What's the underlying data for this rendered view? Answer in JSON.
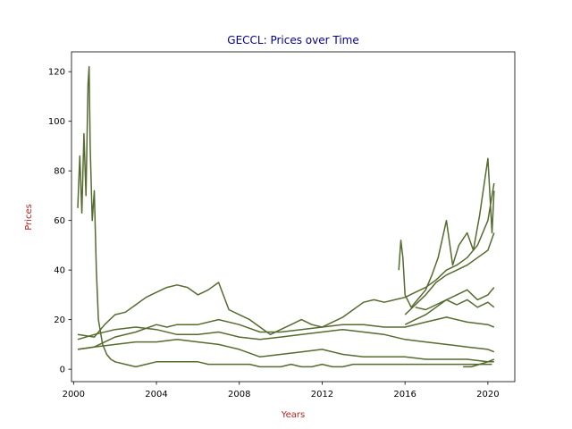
{
  "chart_data": {
    "type": "line",
    "title": "GECCL: Prices over Time",
    "xlabel": "Years",
    "ylabel": "Prices",
    "xlim": [
      1999.9,
      2021.3
    ],
    "ylim": [
      -5,
      128
    ],
    "x_ticks": [
      2000,
      2004,
      2008,
      2012,
      2016,
      2020
    ],
    "x_tick_labels": [
      "2000",
      "2004",
      "2008",
      "2012",
      "2016",
      "2020"
    ],
    "y_ticks": [
      0,
      20,
      40,
      60,
      80,
      100,
      120
    ],
    "y_tick_labels": [
      "0",
      "20",
      "40",
      "60",
      "80",
      "100",
      "120"
    ],
    "grid": false,
    "legend": "none",
    "colors": {
      "line": "#556b2f",
      "title": "#00008b",
      "axis_label": "#b22222",
      "axes": "#000000"
    },
    "series": [
      {
        "x": [
          2000.2,
          2000.3,
          2000.4,
          2000.5,
          2000.6,
          2000.7,
          2000.75,
          2000.8,
          2000.9,
          2001.0,
          2001.1,
          2001.2,
          2001.4,
          2001.6,
          2001.8,
          2002.0,
          2002.5,
          2003.0,
          2003.5,
          2004.0,
          2004.5,
          2005.0,
          2005.5,
          2006.0,
          2006.5,
          2007.0,
          2007.5,
          2008.0,
          2008.5,
          2009.0,
          2009.5,
          2010.0,
          2010.5,
          2011.0,
          2011.5,
          2012.0,
          2012.5,
          2013.0,
          2013.5,
          2014.0,
          2014.5,
          2015.0,
          2015.5,
          2016.0,
          2016.5,
          2017.0,
          2017.5,
          2018.0,
          2018.5,
          2019.0,
          2019.5,
          2020.0,
          2020.2
        ],
        "values": [
          65,
          86,
          63,
          95,
          70,
          115,
          122,
          90,
          60,
          72,
          40,
          20,
          10,
          6,
          4,
          3,
          2,
          1,
          2,
          3,
          3,
          3,
          3,
          3,
          2,
          2,
          2,
          2,
          2,
          1,
          1,
          1,
          2,
          1,
          1,
          2,
          1,
          1,
          2,
          2,
          2,
          2,
          2,
          2,
          2,
          2,
          2,
          2,
          2,
          2,
          2,
          2,
          2
        ]
      },
      {
        "x": [
          2000.2,
          2001.0,
          2001.5,
          2002.0,
          2002.5,
          2003.0,
          2003.5,
          2004.0,
          2004.5,
          2005.0,
          2005.5,
          2006.0,
          2006.5,
          2007.0,
          2007.5,
          2008.0,
          2008.5,
          2009.0,
          2009.5,
          2010.0,
          2010.5,
          2011.0,
          2011.5,
          2012.0,
          2012.5,
          2013.0,
          2013.5,
          2014.0,
          2014.5,
          2015.0,
          2015.5,
          2016.0,
          2016.5,
          2017.0,
          2017.5,
          2018.0,
          2018.5,
          2019.0,
          2019.5,
          2020.0,
          2020.3
        ],
        "values": [
          14,
          13,
          18,
          22,
          23,
          26,
          29,
          31,
          33,
          34,
          33,
          30,
          32,
          35,
          24,
          22,
          20,
          17,
          14,
          16,
          18,
          20,
          18,
          17,
          19,
          21,
          24,
          27,
          28,
          27,
          28,
          29,
          31,
          33,
          36,
          40,
          42,
          45,
          50,
          60,
          75
        ]
      },
      {
        "x": [
          2000.2,
          2001.0,
          2002.0,
          2003.0,
          2004.0,
          2004.5,
          2005.0,
          2006.0,
          2007.0,
          2008.0,
          2009.0,
          2010.0,
          2011.0,
          2012.0,
          2013.0,
          2014.0,
          2015.0,
          2016.0,
          2017.0,
          2018.0,
          2019.0,
          2020.0,
          2020.3
        ],
        "values": [
          8,
          9,
          13,
          15,
          18,
          17,
          18,
          18,
          20,
          18,
          15,
          15,
          16,
          17,
          18,
          18,
          17,
          17,
          19,
          21,
          19,
          18,
          17
        ]
      },
      {
        "x": [
          2000.2,
          2001.0,
          2002.0,
          2003.0,
          2004.0,
          2005.0,
          2006.0,
          2007.0,
          2008.0,
          2009.0,
          2010.0,
          2011.0,
          2012.0,
          2013.0,
          2014.0,
          2015.0,
          2016.0,
          2017.0,
          2018.0,
          2019.0,
          2020.0,
          2020.3
        ],
        "values": [
          12,
          14,
          16,
          17,
          16,
          14,
          14,
          15,
          13,
          12,
          13,
          14,
          15,
          16,
          15,
          14,
          12,
          11,
          10,
          9,
          8,
          7
        ]
      },
      {
        "x": [
          2000.2,
          2001.0,
          2002.0,
          2003.0,
          2004.0,
          2005.0,
          2006.0,
          2007.0,
          2008.0,
          2009.0,
          2010.0,
          2011.0,
          2012.0,
          2013.0,
          2014.0,
          2015.0,
          2016.0,
          2017.0,
          2018.0,
          2019.0,
          2020.0,
          2020.3
        ],
        "values": [
          8,
          9,
          10,
          11,
          11,
          12,
          11,
          10,
          8,
          5,
          6,
          7,
          8,
          6,
          5,
          5,
          5,
          4,
          4,
          4,
          3,
          3
        ]
      },
      {
        "x": [
          2015.7,
          2015.8,
          2015.9,
          2016.0,
          2016.3,
          2016.6,
          2017.0,
          2017.3,
          2017.6,
          2018.0,
          2018.3,
          2018.6,
          2019.0,
          2019.3,
          2019.6,
          2020.0,
          2020.1,
          2020.2,
          2020.3
        ],
        "values": [
          40,
          52,
          45,
          30,
          25,
          28,
          32,
          38,
          45,
          60,
          42,
          50,
          55,
          48,
          62,
          85,
          70,
          55,
          72
        ]
      },
      {
        "x": [
          2016.0,
          2016.5,
          2017.0,
          2017.5,
          2018.0,
          2018.5,
          2019.0,
          2019.5,
          2020.0,
          2020.3
        ],
        "values": [
          22,
          26,
          30,
          35,
          38,
          40,
          42,
          45,
          48,
          55
        ]
      },
      {
        "x": [
          2016.0,
          2016.5,
          2017.0,
          2017.5,
          2018.0,
          2018.5,
          2019.0,
          2019.5,
          2020.0,
          2020.3
        ],
        "values": [
          18,
          20,
          22,
          25,
          28,
          30,
          32,
          28,
          30,
          33
        ]
      },
      {
        "x": [
          2016.5,
          2017.0,
          2017.5,
          2018.0,
          2018.5,
          2019.0,
          2019.5,
          2020.0,
          2020.3
        ],
        "values": [
          25,
          24,
          26,
          28,
          26,
          28,
          25,
          27,
          25
        ]
      },
      {
        "x": [
          2018.8,
          2019.2,
          2019.6,
          2020.0,
          2020.3
        ],
        "values": [
          1,
          1,
          2,
          3,
          4
        ]
      }
    ]
  }
}
